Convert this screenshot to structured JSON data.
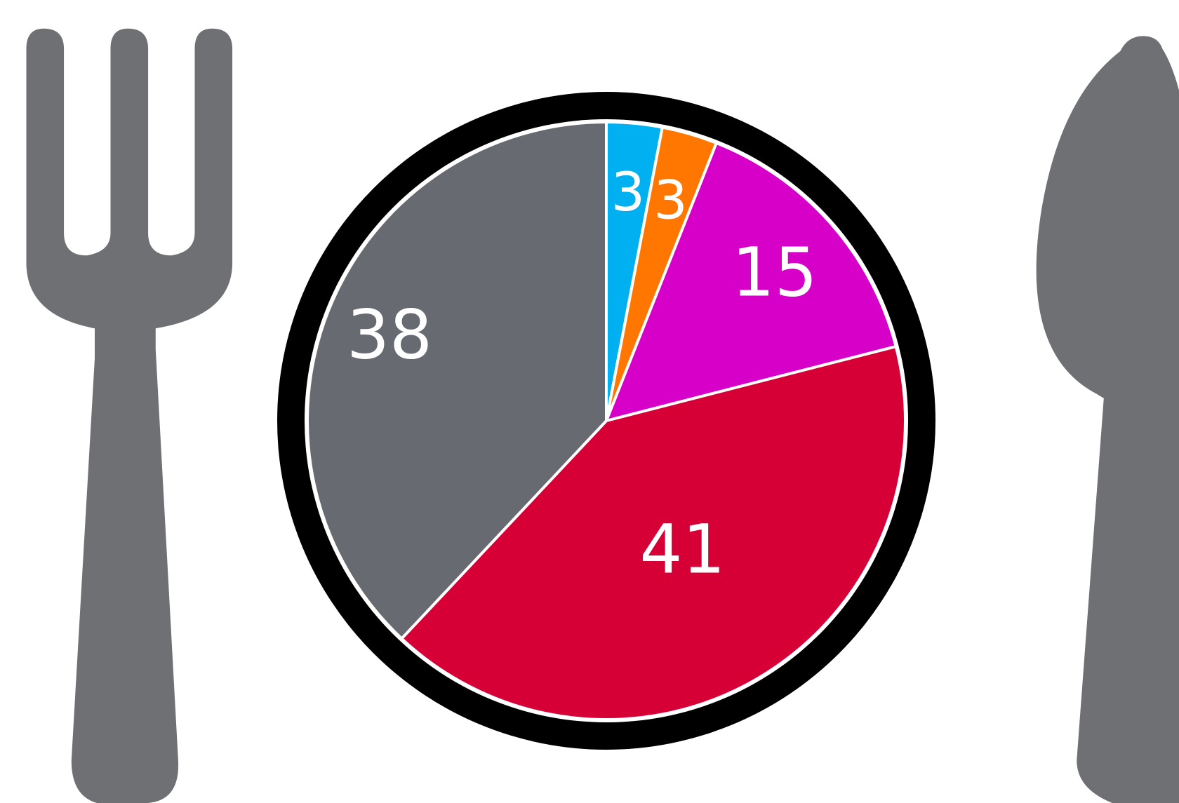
{
  "chart_data": {
    "type": "pie",
    "values": [
      3,
      3,
      15,
      41,
      38
    ],
    "colors": [
      "#00b0f0",
      "#ff7700",
      "#d600c8",
      "#d60036",
      "#676a70"
    ]
  }
}
